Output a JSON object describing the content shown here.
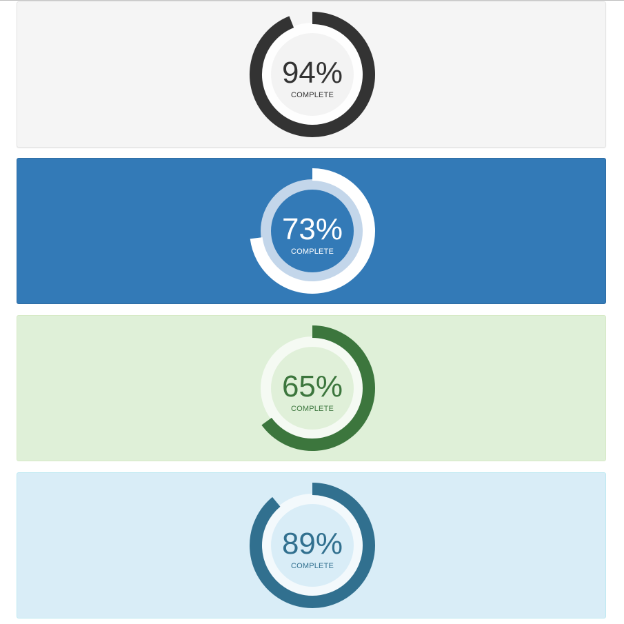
{
  "progress_panels": [
    {
      "percent": 94,
      "percent_text": "94%",
      "caption": "COMPLETE",
      "colors": {
        "arc": "#333333",
        "track": "#ffffff",
        "inner": "#f3f3f3",
        "track_opacity": 0.9,
        "text": "#333333"
      }
    },
    {
      "percent": 73,
      "percent_text": "73%",
      "caption": "COMPLETE",
      "colors": {
        "arc": "#ffffff",
        "track": "#c3d6ea",
        "inner": "#337ab7",
        "track_opacity": 1,
        "text": "#ffffff"
      }
    },
    {
      "percent": 65,
      "percent_text": "65%",
      "caption": "COMPLETE",
      "colors": {
        "arc": "#3c763d",
        "track": "#f5faf3",
        "inner": "#e0f0d9",
        "track_opacity": 1,
        "text": "#3c763d"
      }
    },
    {
      "percent": 89,
      "percent_text": "89%",
      "caption": "COMPLETE",
      "colors": {
        "arc": "#31708f",
        "track": "#f3f9fc",
        "inner": "#d9edf7",
        "track_opacity": 1,
        "text": "#31708f"
      }
    }
  ]
}
